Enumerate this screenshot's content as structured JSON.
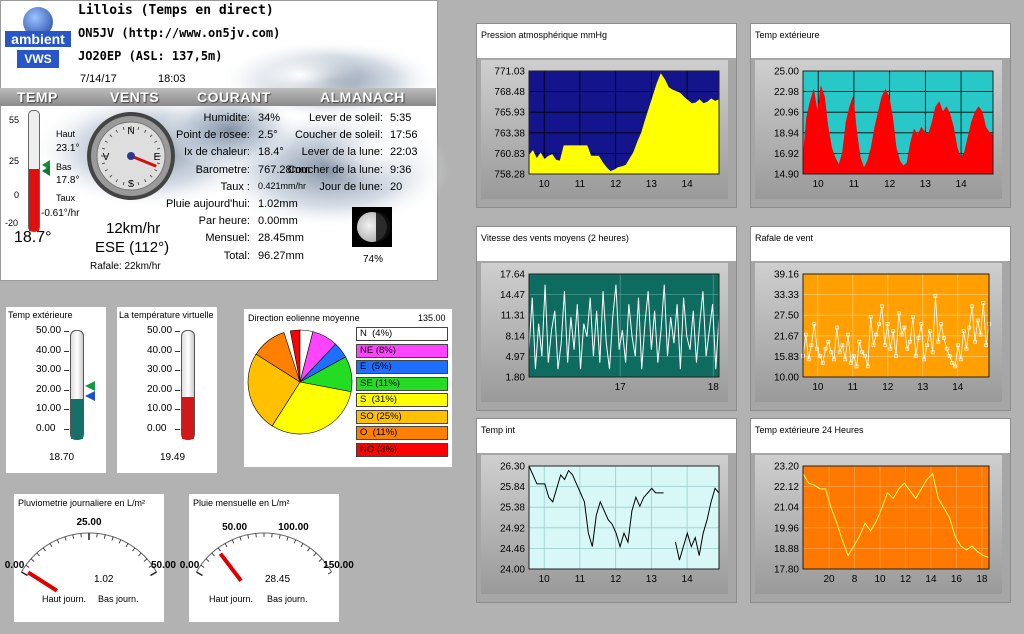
{
  "station": {
    "name": "Lillois (Temps en direct)",
    "callsign": "ON5JV  (http://www.on5jv.com)",
    "locator": "JO20EP (ASL: 137,5m)",
    "date": "7/14/17",
    "time": "18:03",
    "logo_top": "ambient",
    "logo_bottom": "VWS",
    "headers": [
      "TEMP",
      "VENTS",
      "COURANT",
      "ALMANACH"
    ],
    "temp_scale": [
      "55",
      "25",
      "0",
      "-20"
    ],
    "haut_label": "Haut",
    "haut_value": "23.1°",
    "bas_label": "Bas",
    "bas_value": "17.8°",
    "taux_label": "Taux",
    "taux_value": "-0.61°/hr",
    "temp_now": "18.7°",
    "temp_fill": 0.52,
    "compass": {
      "N": "N",
      "E": "E",
      "S": "S",
      "V": "V",
      "direction_deg": 112
    },
    "wind_speed": "12km/hr",
    "wind_dir": "ESE (112°)",
    "rafale": "Rafale:  22km/hr",
    "current": [
      {
        "label": "Humidite:",
        "value": "34%"
      },
      {
        "label": "Point de rosee:",
        "value": "2.5°"
      },
      {
        "label": "Ix de chaleur:",
        "value": "18.4°"
      },
      {
        "label": "Barometre:",
        "value": "767.28mm"
      },
      {
        "label": "Taux :",
        "value": "0.421mm/hr"
      },
      {
        "label": "Pluie aujourd'hui:",
        "value": "1.02mm"
      },
      {
        "label": "Par heure:",
        "value": "0.00mm"
      },
      {
        "label": "Mensuel:",
        "value": "28.45mm"
      },
      {
        "label": "Total:",
        "value": "96.27mm"
      }
    ],
    "almanac": [
      {
        "label": "Lever de soleil:",
        "value": "5:35"
      },
      {
        "label": "Coucher de soleil:",
        "value": "17:56"
      },
      {
        "label": "Lever de la lune:",
        "value": "22:03"
      },
      {
        "label": "Coucher de la lune:",
        "value": "9:36"
      },
      {
        "label": "Jour de lune:",
        "value": "20"
      }
    ],
    "moon_pct": "74%"
  },
  "thermo_ext": {
    "title": "Temp extérieure",
    "scale": [
      "50.00",
      "40.00",
      "30.00",
      "20.00",
      "10.00",
      "0.00"
    ],
    "value": "18.70",
    "level": 18.7
  },
  "thermo_virt": {
    "title": "La température virtuelle",
    "scale": [
      "50.00",
      "40.00",
      "30.00",
      "20.00",
      "10.00",
      "0.00"
    ],
    "value": "19.49",
    "level": 19.49
  },
  "wind_dir_pie": {
    "title": "Direction eolienne moyenne",
    "value": "135.00",
    "legend": [
      {
        "label": "N  (4%)",
        "color": "#ffffff",
        "pct": 4
      },
      {
        "label": "NE (8%)",
        "color": "#ff44ff",
        "pct": 8
      },
      {
        "label": "E  (5%)",
        "color": "#1e6eff",
        "pct": 5
      },
      {
        "label": "SE (11%)",
        "color": "#22dd22",
        "pct": 11
      },
      {
        "label": "S  (31%)",
        "color": "#ffff00",
        "pct": 31
      },
      {
        "label": "SO (25%)",
        "color": "#ffc000",
        "pct": 25
      },
      {
        "label": "O  (11%)",
        "color": "#ff7f00",
        "pct": 11
      },
      {
        "label": "NO (3%)",
        "color": "#ff0000",
        "pct": 3
      }
    ]
  },
  "rain_day": {
    "title": "Pluviometrie journaliere en L/m²",
    "scale": [
      "0.00",
      "25.00",
      "50.00"
    ],
    "value": "1.02",
    "left": "Haut journ.",
    "right": "Bas journ.",
    "fraction": 0.02
  },
  "rain_month": {
    "title": "Pluie mensuelle en L/m²",
    "scale": [
      "0.00",
      "50.00",
      "100.00",
      "150.00"
    ],
    "value": "28.45",
    "left": "Haut journ.",
    "right": "Bas journ.",
    "fraction": 0.19
  },
  "chart_data": [
    {
      "type": "area",
      "title": "Pression atmosphérique mmHg",
      "yticks": [
        "771.03",
        "768.48",
        "765.93",
        "763.38",
        "760.83",
        "758.28"
      ],
      "xticks": [
        "10",
        "11",
        "12",
        "13",
        "14"
      ],
      "ylim": [
        758.28,
        771.03
      ],
      "bg": "#14148c",
      "fill": "#ffff00",
      "values": [
        760.6,
        761.2,
        760.2,
        760.9,
        760.1,
        760.5,
        760.7,
        760.0,
        759.9,
        761.8,
        761.8,
        761.8,
        761.8,
        761.8,
        761.8,
        761.8,
        760.5,
        760.5,
        760.5,
        759.7,
        759.1,
        758.6,
        758.8,
        759.1,
        759.2,
        759.4,
        760.2,
        761.0,
        762.3,
        763.4,
        765.0,
        766.5,
        768.0,
        769.5,
        770.7,
        770.0,
        769.0,
        768.7,
        768.5,
        768.3,
        767.8,
        767.4,
        767.0,
        767.1,
        767.5,
        767.0,
        767.2,
        767.6,
        767.3,
        767.5
      ]
    },
    {
      "type": "area",
      "title": "Temp extérieure",
      "yticks": [
        "25.00",
        "22.98",
        "20.96",
        "18.94",
        "16.92",
        "14.90"
      ],
      "xticks": [
        "10",
        "11",
        "12",
        "13",
        "14"
      ],
      "ylim": [
        14.9,
        25.0
      ],
      "bg": "#28c8c8",
      "fill": "#ff0000",
      "values": [
        16.5,
        20.5,
        22.0,
        23.2,
        21.0,
        23.5,
        22.5,
        19.5,
        17.5,
        16.5,
        15.8,
        17.0,
        20.0,
        21.5,
        22.5,
        19.0,
        16.5,
        15.5,
        16.2,
        17.5,
        19.5,
        21.0,
        22.5,
        23.2,
        22.5,
        20.5,
        17.5,
        16.2,
        15.7,
        16.0,
        18.0,
        19.3,
        18.7,
        19.5,
        19.0,
        18.8,
        20.0,
        21.5,
        22.0,
        21.0,
        21.5,
        20.8,
        19.5,
        17.5,
        16.5,
        17.0,
        18.5,
        20.0,
        21.0,
        21.5,
        21.0,
        19.5,
        19.0,
        18.7
      ]
    },
    {
      "type": "line",
      "title": "Vitesse des vents moyens (2 heures)",
      "yticks": [
        "17.64",
        "14.47",
        "11.31",
        "8.14",
        "4.97",
        "1.80"
      ],
      "xticks": [
        "17",
        "18"
      ],
      "ylim": [
        1.8,
        17.64
      ],
      "bg": "#0e6b60",
      "stroke": "#ffffff",
      "values": [
        6,
        14,
        3,
        10,
        5,
        16,
        4,
        9,
        12,
        3,
        7,
        15,
        4,
        11,
        6,
        13,
        3,
        10,
        8,
        14,
        5,
        12,
        4,
        15,
        7,
        3,
        11,
        16,
        6,
        9,
        4,
        13,
        8,
        5,
        14,
        3,
        10,
        15,
        6,
        12,
        4,
        9,
        16,
        5,
        11,
        7,
        13,
        3,
        14,
        8,
        6,
        12,
        4,
        10,
        15,
        5,
        9,
        13,
        3,
        11
      ]
    },
    {
      "type": "scatter",
      "title": "Rafale de vent",
      "yticks": [
        "39.16",
        "33.33",
        "27.50",
        "21.67",
        "15.83",
        "10.00"
      ],
      "xticks": [
        "10",
        "11",
        "12",
        "13",
        "14"
      ],
      "ylim": [
        10.0,
        39.16
      ],
      "bg": "#ffa000",
      "stroke": "#ffffff",
      "values": [
        16,
        22,
        15,
        19,
        25,
        18,
        16,
        14,
        18,
        20,
        17,
        15,
        24,
        17,
        19,
        15,
        22,
        14,
        16,
        13,
        20,
        17,
        16,
        13,
        27,
        19,
        22,
        25,
        30,
        19,
        25,
        18,
        23,
        16,
        28,
        22,
        24,
        18,
        20,
        27,
        16,
        21,
        25,
        15,
        19,
        23,
        17,
        33,
        20,
        25,
        21,
        18,
        16,
        14,
        13,
        19,
        15,
        23,
        18,
        24,
        30,
        20,
        26,
        22,
        31,
        19,
        25
      ]
    },
    {
      "type": "line",
      "title": "Temp int",
      "yticks": [
        "26.30",
        "25.84",
        "25.38",
        "24.92",
        "24.46",
        "24.00"
      ],
      "xticks": [
        "10",
        "11",
        "12",
        "13",
        "14"
      ],
      "ylim": [
        24.0,
        26.3
      ],
      "bg": "#d8f8f8",
      "stroke": "#000000",
      "values": [
        26.3,
        26.1,
        25.9,
        25.9,
        25.9,
        25.6,
        25.5,
        25.8,
        26.1,
        26.0,
        26.2,
        26.1,
        25.9,
        25.7,
        25.5,
        24.8,
        24.5,
        25.2,
        25.5,
        25.3,
        25.1,
        25.0,
        24.8,
        24.5,
        24.8,
        24.6,
        25.3,
        25.6,
        25.4,
        25.6,
        25.7,
        25.8,
        25.7,
        25.7,
        25.7,
        null,
        null,
        24.6,
        24.2,
        24.5,
        24.8,
        24.5,
        24.7,
        24.3,
        24.8,
        25.1,
        25.5,
        25.8,
        25.7
      ]
    },
    {
      "type": "line",
      "title": "Temp extérieure 24 Heures",
      "yticks": [
        "23.20",
        "22.12",
        "21.04",
        "19.96",
        "18.88",
        "17.80"
      ],
      "xticks": [
        "20",
        "8",
        "10",
        "12",
        "14",
        "16",
        "18"
      ],
      "ylim": [
        17.8,
        23.2
      ],
      "bg": "#ff7800",
      "stroke": "#ffff66",
      "values": [
        22.8,
        22.3,
        22.2,
        22.0,
        22.0,
        21.0,
        20.2,
        19.3,
        18.5,
        19.0,
        19.5,
        20.2,
        19.8,
        20.3,
        21.0,
        21.8,
        21.5,
        22.0,
        22.3,
        21.9,
        21.5,
        22.0,
        22.5,
        22.8,
        21.5,
        21.0,
        20.5,
        19.5,
        19.0,
        18.8,
        19.0,
        18.7,
        18.5,
        18.4
      ]
    }
  ]
}
